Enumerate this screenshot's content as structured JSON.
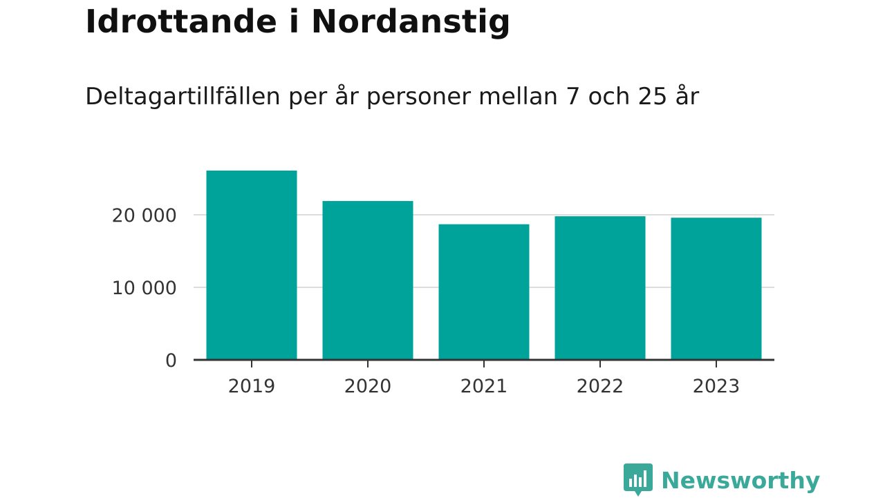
{
  "colors": {
    "bar": "#00a39a",
    "grid": "#dddddd",
    "axis": "#333333",
    "brand": "#3aa99a"
  },
  "logo": {
    "text": "Newsworthy",
    "icon": "newsworthy-bar-chart-icon"
  },
  "chart_data": {
    "type": "bar",
    "title": "Idrottande i Nordanstig",
    "subtitle": "Deltagartillfällen per år personer mellan 7 och 25 år",
    "categories": [
      "2019",
      "2020",
      "2021",
      "2022",
      "2023"
    ],
    "values": [
      26100,
      21900,
      18700,
      19800,
      19600
    ],
    "ylim": [
      0,
      30000
    ],
    "yticks": [
      0,
      10000,
      20000
    ],
    "ytick_labels": [
      "0",
      "10 000",
      "20 000"
    ],
    "xlabel": "",
    "ylabel": "",
    "grid": true,
    "legend": "none"
  }
}
